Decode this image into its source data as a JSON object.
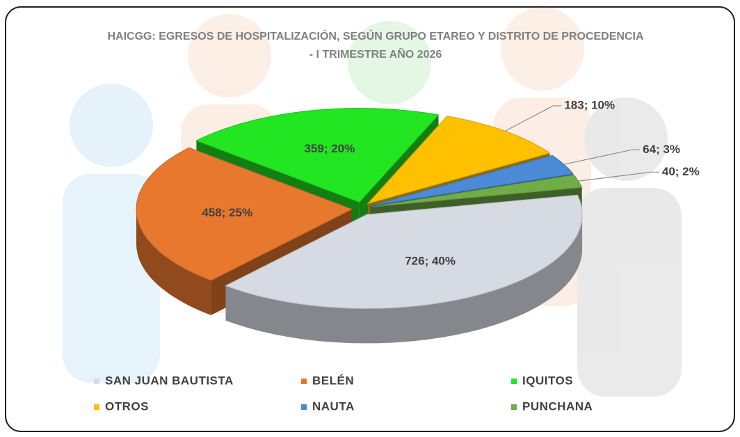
{
  "chart_data": {
    "type": "pie3d",
    "title": "HAICGG: EGRESOS DE HOSPITALIZACIÓN, SEGÚN GRUPO ETAREO Y DISTRITO DE PROCEDENCIA - I TRIMESTRE AÑO 2026",
    "categories": [
      "SAN JUAN BAUTISTA",
      "BELÉN",
      "IQUITOS",
      "OTROS",
      "NAUTA",
      "PUNCHANA"
    ],
    "values": [
      726,
      458,
      359,
      183,
      64,
      40
    ],
    "value_labels": [
      "726; 40%",
      "458; 25%",
      "359; 20%",
      "183; 10%",
      "64; 3%",
      "40; 2%"
    ],
    "colors": [
      "#d6dae3",
      "#e8782e",
      "#22e622",
      "#ffc000",
      "#4a8ad6",
      "#70ad47"
    ],
    "legend": "bottom"
  }
}
